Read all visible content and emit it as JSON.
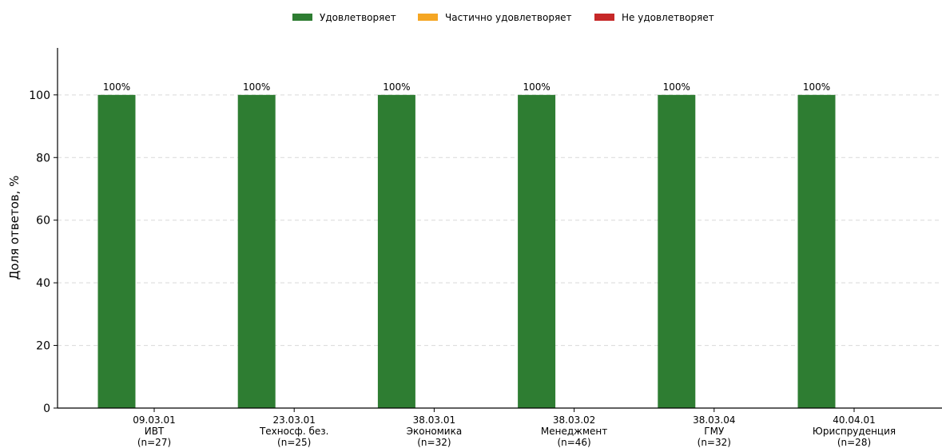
{
  "chart_data": {
    "type": "bar",
    "title": "",
    "xlabel": "",
    "ylabel": "Доля ответов, %",
    "ylim": [
      0,
      115
    ],
    "yticks": [
      0,
      20,
      40,
      60,
      80,
      100
    ],
    "grid": "horizontal-dashed",
    "legend_position": "top",
    "categories": [
      {
        "code": "09.03.01",
        "name": "ИВТ",
        "n": "(n=27)"
      },
      {
        "code": "23.03.01",
        "name": "Техносф. без.",
        "n": "(n=25)"
      },
      {
        "code": "38.03.01",
        "name": "Экономика",
        "n": "(n=32)"
      },
      {
        "code": "38.03.02",
        "name": "Менеджмент",
        "n": "(n=46)"
      },
      {
        "code": "38.03.04",
        "name": "ГМУ",
        "n": "(n=32)"
      },
      {
        "code": "40.04.01",
        "name": "Юриспруденция",
        "n": "(n=28)"
      }
    ],
    "series": [
      {
        "name": "Удовлетворяет",
        "color": "#2e7d32",
        "values": [
          100,
          100,
          100,
          100,
          100,
          100
        ],
        "labels": [
          "100%",
          "100%",
          "100%",
          "100%",
          "100%",
          "100%"
        ]
      },
      {
        "name": "Частично удовлетворяет",
        "color": "#f5a623",
        "values": [
          0,
          0,
          0,
          0,
          0,
          0
        ],
        "labels": [
          "",
          "",
          "",
          "",
          "",
          ""
        ]
      },
      {
        "name": "Не удовлетворяет",
        "color": "#c62828",
        "values": [
          0,
          0,
          0,
          0,
          0,
          0
        ],
        "labels": [
          "",
          "",
          "",
          "",
          "",
          ""
        ]
      }
    ]
  }
}
